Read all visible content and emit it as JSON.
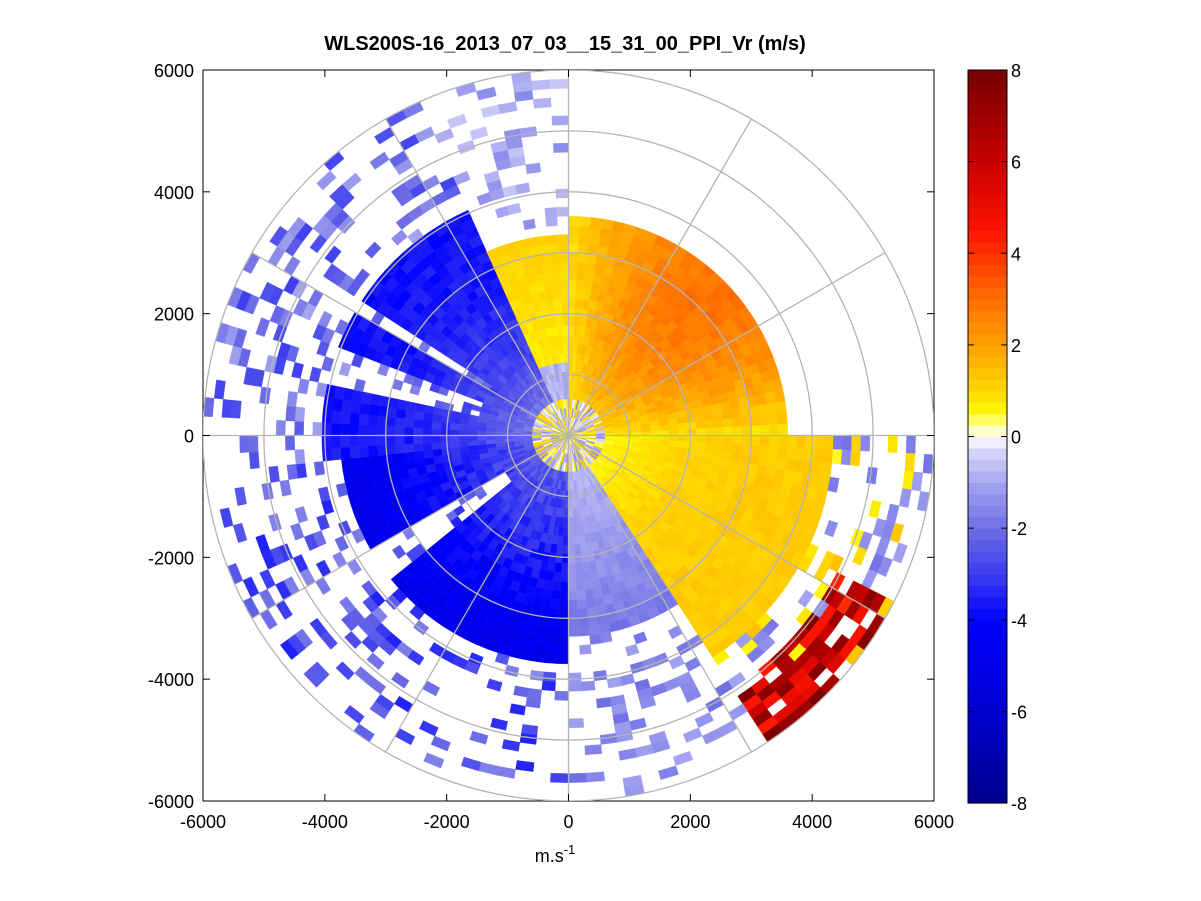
{
  "chart_data": {
    "type": "heatmap",
    "subtype": "polar-ppi-scan",
    "title": "WLS200S-16_2013_07_03__15_31_00_PPI_Vr (m/s)",
    "xlabel_base": "m.s",
    "xlabel_exp": "-1",
    "ylabel": "",
    "xlim": [
      -6000,
      6000
    ],
    "ylim": [
      -6000,
      6000
    ],
    "x_ticks": [
      -6000,
      -4000,
      -2000,
      0,
      2000,
      4000,
      6000
    ],
    "y_ticks": [
      -6000,
      -4000,
      -2000,
      0,
      2000,
      4000,
      6000
    ],
    "x_tick_labels": [
      "-6000",
      "-4000",
      "-2000",
      "0",
      "2000",
      "4000",
      "6000"
    ],
    "y_tick_labels": [
      "-6000",
      "-4000",
      "-2000",
      "0",
      "2000",
      "4000",
      "6000"
    ],
    "polar_grid": {
      "ring_radii": [
        1000,
        2000,
        3000,
        4000,
        5000,
        6000
      ],
      "spoke_angles_deg": [
        0,
        30,
        60,
        90,
        120,
        150,
        180,
        210,
        240,
        270,
        300,
        330
      ]
    },
    "colorbar": {
      "range": [
        -8,
        8
      ],
      "ticks": [
        -8,
        -6,
        -4,
        -2,
        0,
        2,
        4,
        6,
        8
      ],
      "tick_labels": [
        "-8",
        "-6",
        "-4",
        "-2",
        "0",
        "2",
        "4",
        "6",
        "8"
      ],
      "levels": 64
    },
    "velocity_field": {
      "description_sectors": [
        {
          "azimuth_from_north_deg": [
            0,
            90
          ],
          "range_m": [
            0,
            3500
          ],
          "vr_m_s": [
            0.5,
            2.5
          ]
        },
        {
          "azimuth_from_north_deg": [
            90,
            150
          ],
          "range_m": [
            0,
            4200
          ],
          "vr_m_s": [
            0.3,
            1.2
          ]
        },
        {
          "azimuth_from_north_deg": [
            150,
            180
          ],
          "range_m": [
            500,
            3200
          ],
          "vr_m_s": [
            -1.5,
            -0.5
          ]
        },
        {
          "azimuth_from_north_deg": [
            180,
            260
          ],
          "range_m": [
            0,
            3800
          ],
          "vr_m_s": [
            -5,
            -2
          ]
        },
        {
          "azimuth_from_north_deg": [
            260,
            330
          ],
          "range_m": [
            0,
            4000
          ],
          "vr_m_s": [
            -4,
            -1
          ]
        },
        {
          "azimuth_from_north_deg": [
            330,
            360
          ],
          "range_m": [
            1000,
            3500
          ],
          "vr_m_s": [
            0.5,
            1.0
          ]
        },
        {
          "azimuth_from_north_deg": [
            120,
            145
          ],
          "range_m": [
            5000,
            6000
          ],
          "vr_m_s": [
            4,
            8
          ]
        }
      ]
    }
  }
}
